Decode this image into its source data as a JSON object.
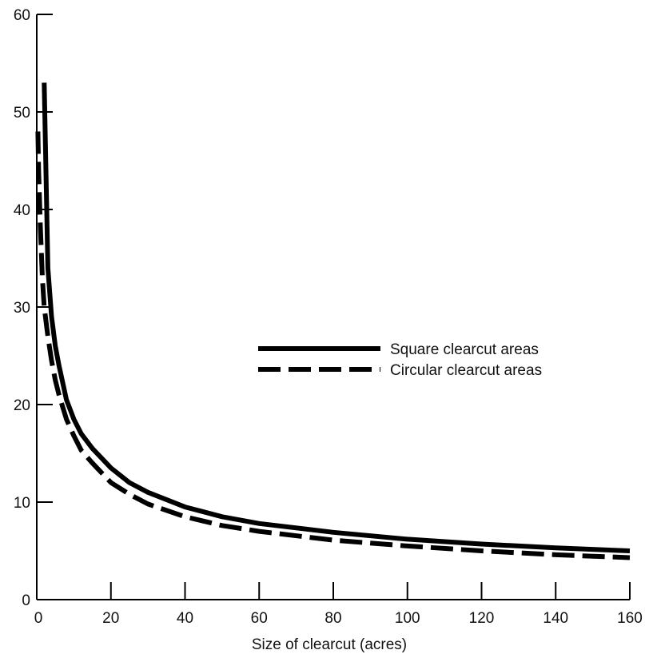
{
  "chart_data": {
    "type": "line",
    "title": "",
    "xlabel": "Size of clearcut (acres)",
    "ylabel": "",
    "xlim": [
      0,
      160
    ],
    "ylim": [
      0,
      60
    ],
    "x_ticks": [
      0,
      20,
      40,
      60,
      80,
      100,
      120,
      140,
      160
    ],
    "y_ticks": [
      0,
      10,
      20,
      30,
      40,
      50,
      60
    ],
    "grid": false,
    "legend_position": "right",
    "series": [
      {
        "name": "Square clearcut areas",
        "style": "solid",
        "color": "#000000",
        "x": [
          2,
          3,
          4,
          5,
          6,
          8,
          10,
          12,
          15,
          20,
          25,
          30,
          40,
          50,
          60,
          80,
          100,
          120,
          140,
          160
        ],
        "y": [
          53,
          34,
          29,
          26,
          24,
          20.5,
          18.5,
          17,
          15.5,
          13.5,
          12,
          11,
          9.5,
          8.5,
          7.8,
          6.9,
          6.2,
          5.7,
          5.3,
          5.0
        ]
      },
      {
        "name": "Circular clearcut areas",
        "style": "dashed",
        "color": "#000000",
        "x": [
          0.3,
          0.5,
          1,
          1.5,
          2,
          3,
          4,
          5,
          6,
          8,
          10,
          12,
          15,
          20,
          25,
          30,
          40,
          50,
          60,
          80,
          100,
          120,
          140,
          160
        ],
        "y": [
          48,
          44,
          38,
          33,
          30,
          27,
          24.5,
          22.5,
          21,
          18.5,
          16.8,
          15.3,
          14,
          12,
          10.8,
          9.8,
          8.5,
          7.6,
          7.0,
          6.1,
          5.5,
          5.0,
          4.6,
          4.3
        ]
      }
    ]
  }
}
